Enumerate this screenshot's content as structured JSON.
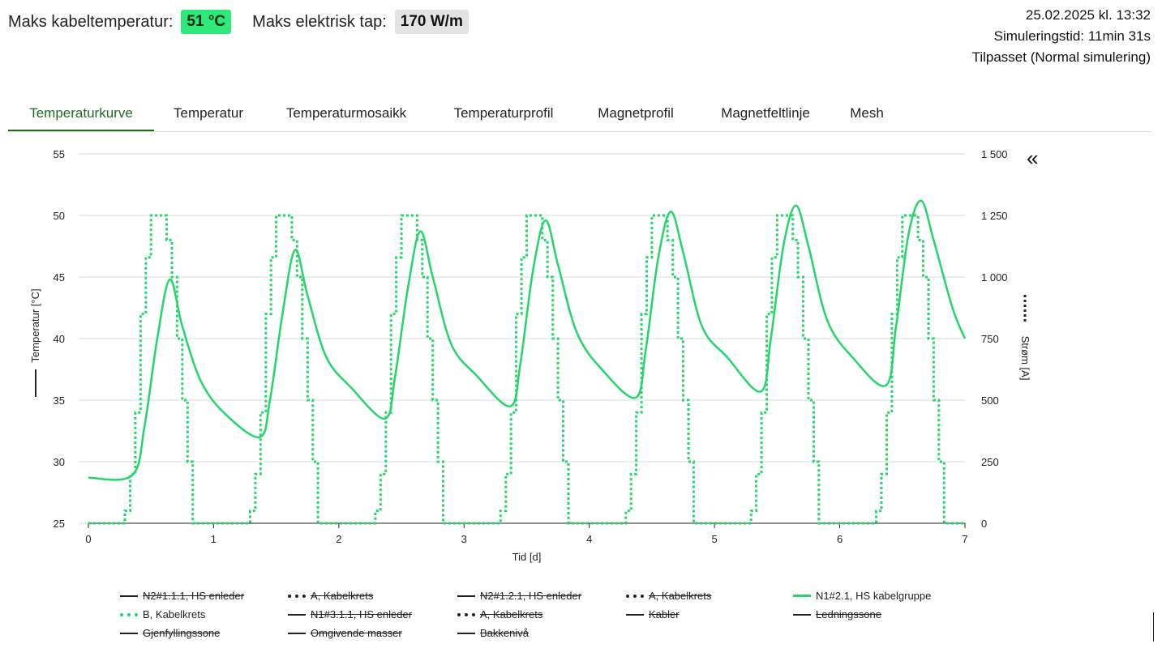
{
  "header": {
    "max_temp_label": "Maks kabeltemperatur:",
    "max_temp_value": "51 °C",
    "max_loss_label": "Maks elektrisk tap:",
    "max_loss_value": "170 W/m"
  },
  "meta": {
    "timestamp": "25.02.2025 kl. 13:32",
    "sim_time": "Simuleringstid: 11min 31s",
    "mode": "Tilpasset (Normal simulering)"
  },
  "tabs": [
    {
      "label": "Temperaturkurve",
      "active": true
    },
    {
      "label": "Temperatur",
      "active": false
    },
    {
      "label": "Temperaturmosaikk",
      "active": false
    },
    {
      "label": "Temperaturprofil",
      "active": false
    },
    {
      "label": "Magnetprofil",
      "active": false
    },
    {
      "label": "Magnetfeltlinje",
      "active": false
    },
    {
      "label": "Mesh",
      "active": false
    }
  ],
  "collapse_glyph": "«",
  "colors": {
    "series": "#22d66a",
    "accent_tab": "#1f6b1f",
    "badge_green": "#2ee87a"
  },
  "legend": [
    {
      "label": "N2#1.1.1, HS enleder",
      "style": "solid-dark",
      "hidden": true
    },
    {
      "label": "A, Kabelkrets",
      "style": "dot-dark",
      "hidden": true
    },
    {
      "label": "N2#1.2.1, HS enleder",
      "style": "solid-dark",
      "hidden": true
    },
    {
      "label": "A, Kabelkrets",
      "style": "dot-dark",
      "hidden": true
    },
    {
      "label": "N1#2.1, HS kabelgruppe",
      "style": "solid-green",
      "hidden": false
    },
    {
      "label": "B, Kabelkrets",
      "style": "dot-green",
      "hidden": false
    },
    {
      "label": "N1#3.1.1, HS enleder",
      "style": "solid-dark",
      "hidden": true
    },
    {
      "label": "A, Kabelkrets",
      "style": "dot-dark",
      "hidden": true
    },
    {
      "label": "Kabler",
      "style": "solid-dark",
      "hidden": true
    },
    {
      "label": "Ledningssone",
      "style": "solid-dark",
      "hidden": true
    },
    {
      "label": "Gjenfyllingssone",
      "style": "solid-dark",
      "hidden": true
    },
    {
      "label": "Omgivende masser",
      "style": "solid-dark",
      "hidden": true
    },
    {
      "label": "Bakkenivå",
      "style": "solid-dark",
      "hidden": true
    }
  ],
  "chart_data": {
    "type": "line",
    "xlabel": "Tid [d]",
    "ylabel": "Temperatur [°C]",
    "y2label": "Strøm [A]",
    "xlim": [
      0,
      7
    ],
    "ylim": [
      25,
      55
    ],
    "y2lim": [
      0,
      1500
    ],
    "xticks": [
      "0",
      "1",
      "2",
      "3",
      "4",
      "5",
      "6",
      "7"
    ],
    "yticks": [
      "25",
      "30",
      "35",
      "40",
      "45",
      "50",
      "55"
    ],
    "y2ticks": [
      "0",
      "250",
      "500",
      "750",
      "1 000",
      "1 250",
      "1 500"
    ],
    "grid": true,
    "legend_position": "bottom",
    "series": [
      {
        "name": "N1#2.1, HS kabelgruppe",
        "axis": "left",
        "style": "solid",
        "x": [
          0,
          0.35,
          0.45,
          0.55,
          0.65,
          0.75,
          0.9,
          1.1,
          1.37,
          1.45,
          1.55,
          1.65,
          1.75,
          1.9,
          2.1,
          2.37,
          2.45,
          2.55,
          2.65,
          2.75,
          2.9,
          3.1,
          3.37,
          3.45,
          3.55,
          3.65,
          3.75,
          3.9,
          4.1,
          4.37,
          4.45,
          4.55,
          4.65,
          4.75,
          4.9,
          5.1,
          5.37,
          5.45,
          5.55,
          5.65,
          5.75,
          5.9,
          6.1,
          6.37,
          6.45,
          6.55,
          6.65,
          6.75,
          6.9,
          7
        ],
        "y": [
          28.7,
          28.9,
          33,
          40,
          44.8,
          41,
          36.5,
          33.8,
          32,
          35,
          42,
          47.2,
          43.5,
          38.5,
          36,
          33.5,
          37,
          44,
          48.7,
          45,
          39.5,
          37,
          34.5,
          38,
          45.5,
          49.6,
          46,
          40.5,
          37.5,
          35.2,
          39,
          46.5,
          50.3,
          47,
          41,
          38.5,
          35.7,
          40,
          47.5,
          50.8,
          47.5,
          41.5,
          38.5,
          36.2,
          41,
          48.5,
          51.2,
          48,
          42.5,
          40
        ]
      },
      {
        "name": "B, Kabelkrets",
        "axis": "right",
        "style": "dotted",
        "profile_hours": [
          [
            0,
            0
          ],
          [
            7,
            50
          ],
          [
            8,
            200
          ],
          [
            9,
            450
          ],
          [
            10,
            850
          ],
          [
            11,
            1080
          ],
          [
            12,
            1250
          ],
          [
            15,
            1150
          ],
          [
            16,
            1000
          ],
          [
            17,
            750
          ],
          [
            18,
            500
          ],
          [
            19,
            250
          ],
          [
            20,
            0
          ],
          [
            24,
            0
          ]
        ]
      }
    ]
  }
}
